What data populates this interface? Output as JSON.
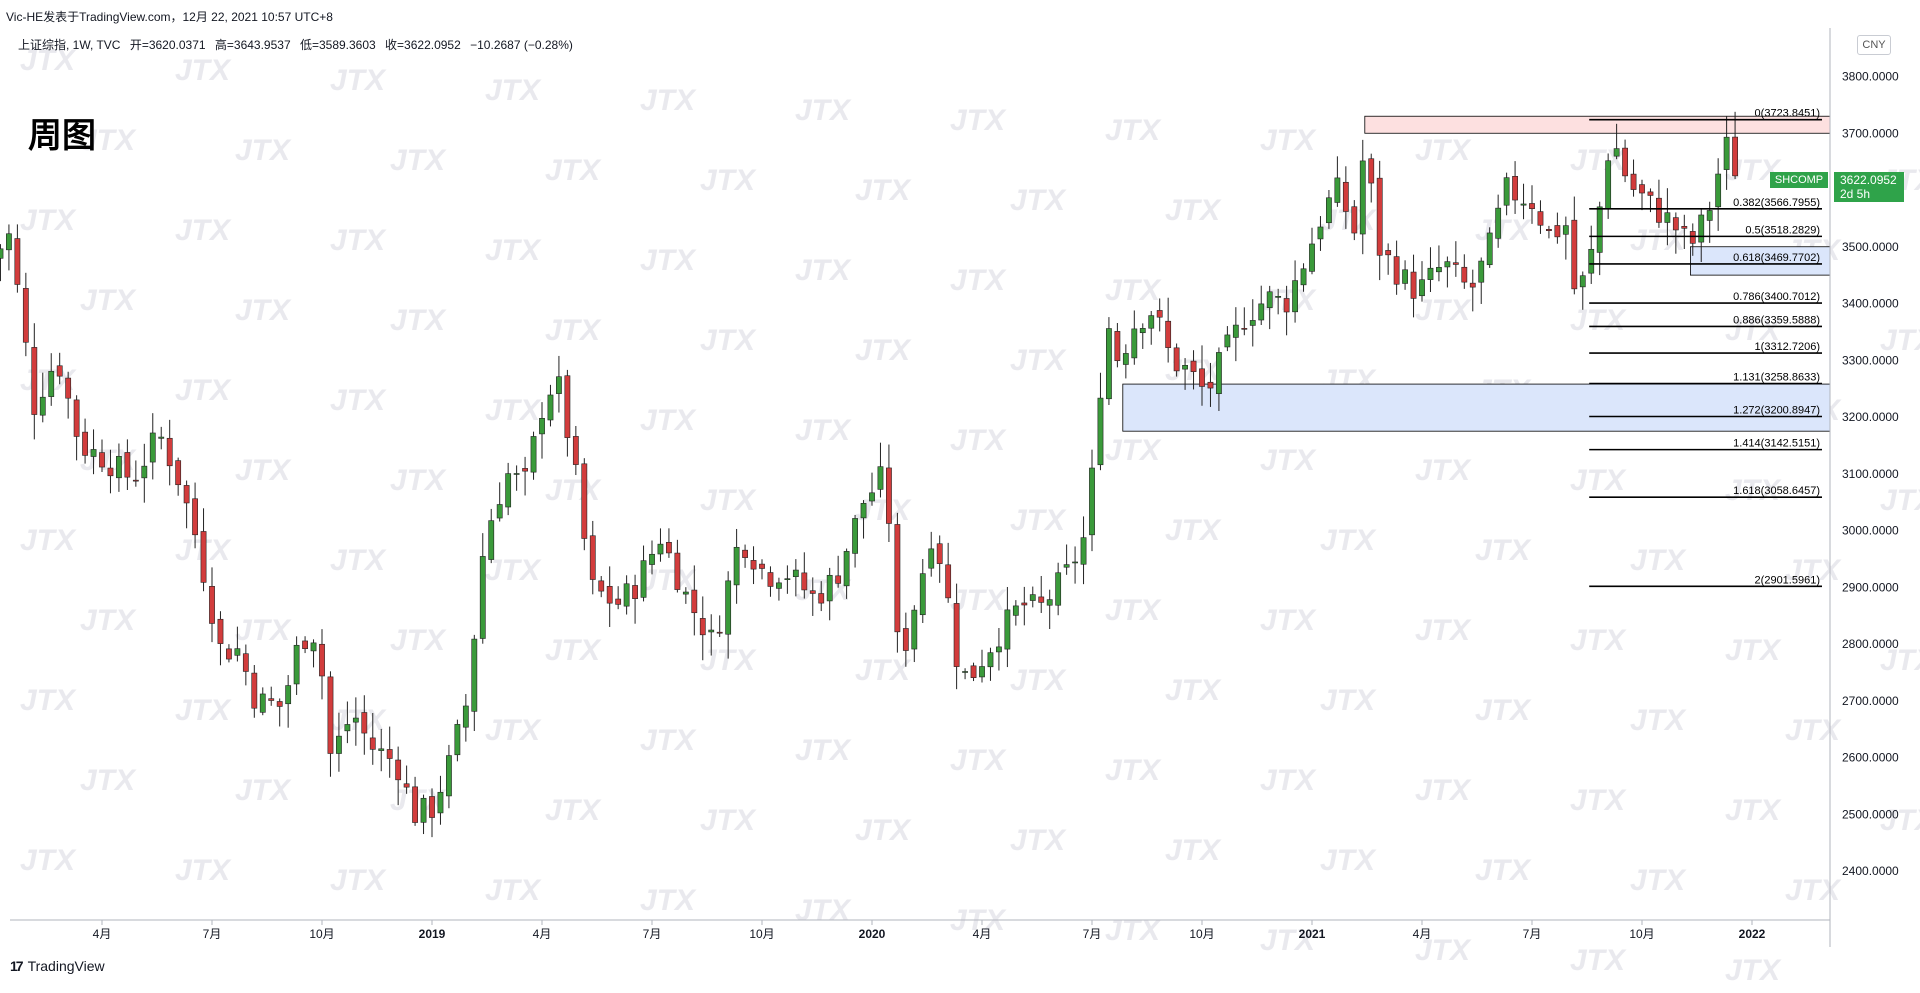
{
  "header": {
    "title": "Vic-HE发表于TradingView.com，12月 22, 2021 10:57 UTC+8",
    "ohlc": {
      "symbol": "上证综指, 1W, TVC",
      "open": "开=3620.0371",
      "high": "高=3643.9537",
      "low": "低=3589.3603",
      "close": "收=3622.0952",
      "change": "−10.2687 (−0.28%)"
    }
  },
  "annotation_text": "周图",
  "currency_label": "CNY",
  "symbol_tag": "SHCOMP",
  "last_price": "3622.0952",
  "countdown": "2d 5h",
  "footer": {
    "brand": "TradingView",
    "logo_glyph": "17"
  },
  "watermark_text": "JTX",
  "colors": {
    "up": "#3a9a3a",
    "down": "#d23c3c",
    "zone_blue": "#dbe6fb",
    "zone_red": "#fde0e0",
    "tag": "#2fa34a"
  },
  "chart_data": {
    "type": "candlestick",
    "timeframe": "1W",
    "ylim": [
      2300,
      3840
    ],
    "y_ticks": [
      2400,
      2500,
      2600,
      2700,
      2800,
      2900,
      3000,
      3100,
      3200,
      3300,
      3400,
      3500,
      3600,
      3700,
      3800
    ],
    "y_tick_labels": [
      "2400.0000",
      "2500.0000",
      "2600.0000",
      "2700.0000",
      "2800.0000",
      "2900.0000",
      "3000.0000",
      "3100.0000",
      "3200.0000",
      "3300.0000",
      "3400.0000",
      "3500.0000",
      "3600.0000",
      "3700.0000",
      "3800.0000"
    ],
    "x_labels": [
      {
        "label": "4月",
        "t": 2018.25
      },
      {
        "label": "7月",
        "t": 2018.5
      },
      {
        "label": "10月",
        "t": 2018.75
      },
      {
        "label": "2019",
        "t": 2019.0
      },
      {
        "label": "4月",
        "t": 2019.25
      },
      {
        "label": "7月",
        "t": 2019.5
      },
      {
        "label": "10月",
        "t": 2019.75
      },
      {
        "label": "2020",
        "t": 2020.0
      },
      {
        "label": "4月",
        "t": 2020.25
      },
      {
        "label": "7月",
        "t": 2020.5
      },
      {
        "label": "10月",
        "t": 2020.75
      },
      {
        "label": "2021",
        "t": 2021.0
      },
      {
        "label": "4月",
        "t": 2021.25
      },
      {
        "label": "7月",
        "t": 2021.5
      },
      {
        "label": "10月",
        "t": 2021.75
      },
      {
        "label": "2022",
        "t": 2022.0
      }
    ],
    "close_path": [
      {
        "t": 2018.0,
        "c": 3480
      },
      {
        "t": 2018.04,
        "c": 3520
      },
      {
        "t": 2018.1,
        "c": 3200
      },
      {
        "t": 2018.12,
        "c": 3270
      },
      {
        "t": 2018.15,
        "c": 3300
      },
      {
        "t": 2018.2,
        "c": 3150
      },
      {
        "t": 2018.25,
        "c": 3130
      },
      {
        "t": 2018.32,
        "c": 3090
      },
      {
        "t": 2018.38,
        "c": 3170
      },
      {
        "t": 2018.42,
        "c": 3100
      },
      {
        "t": 2018.46,
        "c": 3000
      },
      {
        "t": 2018.52,
        "c": 2790
      },
      {
        "t": 2018.56,
        "c": 2790
      },
      {
        "t": 2018.6,
        "c": 2700
      },
      {
        "t": 2018.66,
        "c": 2690
      },
      {
        "t": 2018.7,
        "c": 2810
      },
      {
        "t": 2018.74,
        "c": 2820
      },
      {
        "t": 2018.77,
        "c": 2600
      },
      {
        "t": 2018.82,
        "c": 2680
      },
      {
        "t": 2018.86,
        "c": 2620
      },
      {
        "t": 2018.92,
        "c": 2590
      },
      {
        "t": 2018.96,
        "c": 2500
      },
      {
        "t": 2019.0,
        "c": 2510
      },
      {
        "t": 2019.04,
        "c": 2590
      },
      {
        "t": 2019.08,
        "c": 2700
      },
      {
        "t": 2019.12,
        "c": 2990
      },
      {
        "t": 2019.17,
        "c": 3100
      },
      {
        "t": 2019.21,
        "c": 3080
      },
      {
        "t": 2019.26,
        "c": 3250
      },
      {
        "t": 2019.29,
        "c": 3250
      },
      {
        "t": 2019.33,
        "c": 3080
      },
      {
        "t": 2019.36,
        "c": 2900
      },
      {
        "t": 2019.42,
        "c": 2870
      },
      {
        "t": 2019.46,
        "c": 2900
      },
      {
        "t": 2019.52,
        "c": 2990
      },
      {
        "t": 2019.58,
        "c": 2880
      },
      {
        "t": 2019.64,
        "c": 2800
      },
      {
        "t": 2019.7,
        "c": 2990
      },
      {
        "t": 2019.76,
        "c": 2920
      },
      {
        "t": 2019.8,
        "c": 2930
      },
      {
        "t": 2019.87,
        "c": 2880
      },
      {
        "t": 2019.92,
        "c": 2920
      },
      {
        "t": 2019.98,
        "c": 3050
      },
      {
        "t": 2020.02,
        "c": 3090
      },
      {
        "t": 2020.05,
        "c": 2980
      },
      {
        "t": 2020.06,
        "c": 2750
      },
      {
        "t": 2020.1,
        "c": 2880
      },
      {
        "t": 2020.14,
        "c": 3010
      },
      {
        "t": 2020.17,
        "c": 2890
      },
      {
        "t": 2020.2,
        "c": 2740
      },
      {
        "t": 2020.23,
        "c": 2750
      },
      {
        "t": 2020.28,
        "c": 2810
      },
      {
        "t": 2020.34,
        "c": 2870
      },
      {
        "t": 2020.38,
        "c": 2860
      },
      {
        "t": 2020.44,
        "c": 2920
      },
      {
        "t": 2020.48,
        "c": 2980
      },
      {
        "t": 2020.51,
        "c": 3150
      },
      {
        "t": 2020.53,
        "c": 3380
      },
      {
        "t": 2020.56,
        "c": 3300
      },
      {
        "t": 2020.6,
        "c": 3370
      },
      {
        "t": 2020.64,
        "c": 3390
      },
      {
        "t": 2020.68,
        "c": 3300
      },
      {
        "t": 2020.72,
        "c": 3280
      },
      {
        "t": 2020.76,
        "c": 3240
      },
      {
        "t": 2020.8,
        "c": 3310
      },
      {
        "t": 2020.85,
        "c": 3380
      },
      {
        "t": 2020.9,
        "c": 3410
      },
      {
        "t": 2020.94,
        "c": 3400
      },
      {
        "t": 2020.98,
        "c": 3470
      },
      {
        "t": 2021.03,
        "c": 3570
      },
      {
        "t": 2021.06,
        "c": 3600
      },
      {
        "t": 2021.1,
        "c": 3520
      },
      {
        "t": 2021.12,
        "c": 3690
      },
      {
        "t": 2021.15,
        "c": 3500
      },
      {
        "t": 2021.2,
        "c": 3450
      },
      {
        "t": 2021.24,
        "c": 3420
      },
      {
        "t": 2021.3,
        "c": 3470
      },
      {
        "t": 2021.36,
        "c": 3420
      },
      {
        "t": 2021.4,
        "c": 3490
      },
      {
        "t": 2021.44,
        "c": 3600
      },
      {
        "t": 2021.5,
        "c": 3580
      },
      {
        "t": 2021.54,
        "c": 3520
      },
      {
        "t": 2021.58,
        "c": 3540
      },
      {
        "t": 2021.6,
        "c": 3400
      },
      {
        "t": 2021.64,
        "c": 3500
      },
      {
        "t": 2021.68,
        "c": 3700
      },
      {
        "t": 2021.72,
        "c": 3610
      },
      {
        "t": 2021.76,
        "c": 3580
      },
      {
        "t": 2021.82,
        "c": 3540
      },
      {
        "t": 2021.86,
        "c": 3500
      },
      {
        "t": 2021.9,
        "c": 3560
      },
      {
        "t": 2021.94,
        "c": 3680
      },
      {
        "t": 2021.97,
        "c": 3622
      }
    ],
    "fib_levels": [
      {
        "label": "0(3723.8451)",
        "y": 3723.8451
      },
      {
        "label": "0.382(3566.7955)",
        "y": 3566.7955
      },
      {
        "label": "0.5(3518.2829)",
        "y": 3518.2829
      },
      {
        "label": "0.618(3469.7702)",
        "y": 3469.7702
      },
      {
        "label": "0.786(3400.7012)",
        "y": 3400.7012
      },
      {
        "label": "0.886(3359.5888)",
        "y": 3359.5888
      },
      {
        "label": "1(3312.7206)",
        "y": 3312.7206
      },
      {
        "label": "1.131(3258.8633)",
        "y": 3258.8633
      },
      {
        "label": "1.272(3200.8947)",
        "y": 3200.8947
      },
      {
        "label": "1.414(3142.5151)",
        "y": 3142.5151
      },
      {
        "label": "1.618(3058.6457)",
        "y": 3058.6457
      },
      {
        "label": "2(2901.5961)",
        "y": 2901.5961
      }
    ],
    "zones": [
      {
        "kind": "resistance",
        "y1": 3700,
        "y2": 3730,
        "t_start": 2021.12
      },
      {
        "kind": "support",
        "y1": 3175,
        "y2": 3258,
        "t_start": 2020.57
      },
      {
        "kind": "support",
        "y1": 3450,
        "y2": 3500,
        "t_start": 2021.86
      }
    ]
  }
}
